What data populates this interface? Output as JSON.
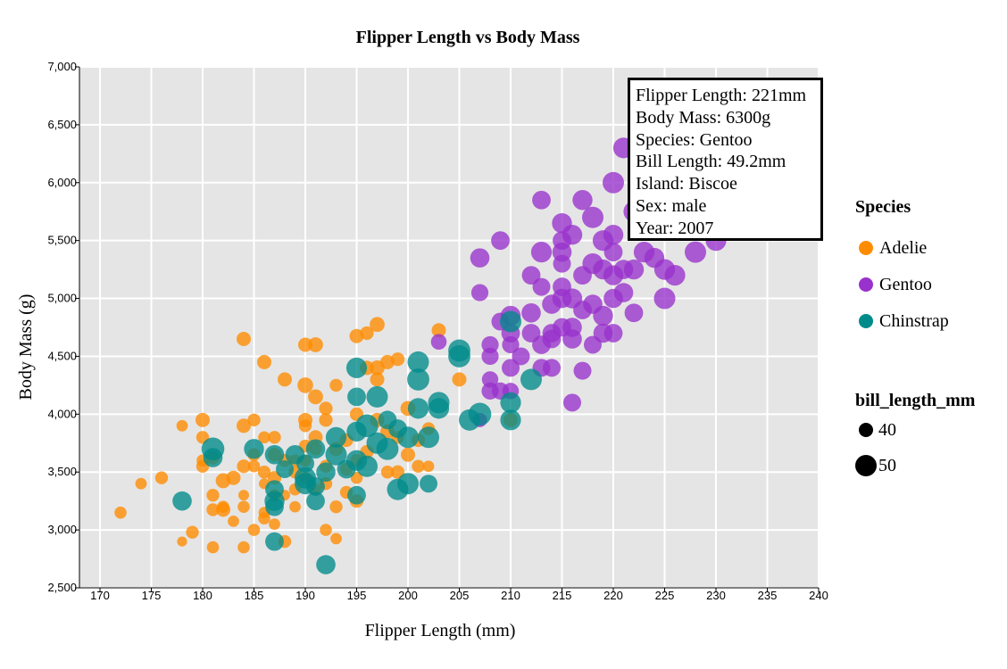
{
  "chart_data": {
    "type": "scatter",
    "title": "Flipper Length vs Body Mass",
    "xlabel": "Flipper Length (mm)",
    "ylabel": "Body Mass (g)",
    "xlim": [
      168,
      240
    ],
    "ylim": [
      2500,
      7000
    ],
    "x_ticks": [
      170,
      175,
      180,
      185,
      190,
      195,
      200,
      205,
      210,
      215,
      220,
      225,
      230,
      235,
      240
    ],
    "y_ticks": [
      2500,
      3000,
      3500,
      4000,
      4500,
      5000,
      5500,
      6000,
      6500,
      7000
    ],
    "x_tick_labels": [
      "170",
      "175",
      "180",
      "185",
      "190",
      "195",
      "200",
      "205",
      "210",
      "215",
      "220",
      "225",
      "230",
      "235",
      "240"
    ],
    "y_tick_labels": [
      "2,500",
      "3,000",
      "3,500",
      "4,000",
      "4,500",
      "5,000",
      "5,500",
      "6,000",
      "6,500",
      "7,000"
    ],
    "grid": true,
    "legend_position": "right",
    "legend": {
      "species_title": "Species",
      "size_title": "bill_length_mm",
      "size_entries": [
        {
          "label": "40",
          "value": 40
        },
        {
          "label": "50",
          "value": 50
        }
      ]
    },
    "series": [
      {
        "name": "Adelie",
        "color": "#ff8c00",
        "points": [
          [
            172,
            3150,
            37
          ],
          [
            174,
            3400,
            36
          ],
          [
            176,
            3450,
            38
          ],
          [
            178,
            2900,
            34
          ],
          [
            178,
            3900,
            36
          ],
          [
            179,
            2980,
            38
          ],
          [
            180,
            3550,
            38
          ],
          [
            180,
            3600,
            37
          ],
          [
            180,
            3950,
            40
          ],
          [
            180,
            3800,
            38
          ],
          [
            181,
            2850,
            37
          ],
          [
            181,
            3300,
            38
          ],
          [
            181,
            3175,
            38
          ],
          [
            181,
            3625,
            39
          ],
          [
            182,
            3175,
            40
          ],
          [
            182,
            3425,
            41
          ],
          [
            182,
            3200,
            37
          ],
          [
            183,
            3075,
            36
          ],
          [
            184,
            2850,
            37
          ],
          [
            184,
            3300,
            35
          ],
          [
            184,
            3550,
            39
          ],
          [
            184,
            3900,
            40
          ],
          [
            184,
            4650,
            40
          ],
          [
            185,
            3650,
            38
          ],
          [
            185,
            3550,
            37
          ],
          [
            185,
            3950,
            38
          ],
          [
            185,
            3000,
            37
          ],
          [
            186,
            3150,
            36
          ],
          [
            186,
            3800,
            37
          ],
          [
            186,
            3500,
            38
          ],
          [
            186,
            3400,
            35
          ],
          [
            186,
            4450,
            40
          ],
          [
            187,
            3300,
            37
          ],
          [
            187,
            3450,
            39
          ],
          [
            187,
            3050,
            36
          ],
          [
            187,
            3800,
            38
          ],
          [
            188,
            3300,
            35
          ],
          [
            188,
            3600,
            38
          ],
          [
            188,
            2900,
            38
          ],
          [
            188,
            4300,
            40
          ],
          [
            189,
            3200,
            36
          ],
          [
            189,
            3500,
            38
          ],
          [
            189,
            3600,
            37
          ],
          [
            190,
            3450,
            37
          ],
          [
            190,
            3725,
            38
          ],
          [
            190,
            3950,
            40
          ],
          [
            190,
            4250,
            42
          ],
          [
            190,
            3600,
            37
          ],
          [
            190,
            3900,
            38
          ],
          [
            190,
            4600,
            40
          ],
          [
            191,
            3350,
            36
          ],
          [
            191,
            3700,
            38
          ],
          [
            191,
            3800,
            40
          ],
          [
            191,
            4150,
            41
          ],
          [
            191,
            4600,
            41
          ],
          [
            192,
            3550,
            38
          ],
          [
            192,
            3950,
            39
          ],
          [
            192,
            4050,
            39
          ],
          [
            193,
            3200,
            38
          ],
          [
            193,
            3700,
            40
          ],
          [
            193,
            4250,
            38
          ],
          [
            193,
            2925,
            36
          ],
          [
            194,
            3325,
            38
          ],
          [
            194,
            3525,
            38
          ],
          [
            194,
            3775,
            39
          ],
          [
            195,
            3250,
            39
          ],
          [
            195,
            3600,
            38
          ],
          [
            195,
            3450,
            37
          ],
          [
            195,
            4000,
            39
          ],
          [
            195,
            4675,
            40
          ],
          [
            196,
            3675,
            39
          ],
          [
            196,
            4400,
            40
          ],
          [
            196,
            4700,
            39
          ],
          [
            197,
            3950,
            40
          ],
          [
            197,
            4300,
            40
          ],
          [
            197,
            4400,
            41
          ],
          [
            197,
            4775,
            41
          ],
          [
            198,
            3500,
            38
          ],
          [
            198,
            3850,
            40
          ],
          [
            198,
            4450,
            40
          ],
          [
            199,
            3500,
            39
          ],
          [
            199,
            3800,
            38
          ],
          [
            199,
            4475,
            39
          ],
          [
            200,
            3650,
            40
          ],
          [
            200,
            4050,
            41
          ],
          [
            201,
            3550,
            38
          ],
          [
            201,
            3775,
            39
          ],
          [
            202,
            3550,
            36
          ],
          [
            202,
            3875,
            38
          ],
          [
            203,
            4725,
            40
          ],
          [
            205,
            4300,
            40
          ],
          [
            210,
            3950,
            40
          ],
          [
            189,
            3350,
            37
          ],
          [
            183,
            3450,
            40
          ],
          [
            187,
            3650,
            39
          ],
          [
            192,
            3000,
            37
          ],
          [
            186,
            3100,
            37
          ],
          [
            184,
            3200,
            37
          ],
          [
            192,
            3400,
            38
          ]
        ]
      },
      {
        "name": "Gentoo",
        "color": "#9932cc",
        "points": [
          [
            203,
            4625,
            42
          ],
          [
            207,
            5050,
            44
          ],
          [
            207,
            3950,
            40
          ],
          [
            207,
            5350,
            47
          ],
          [
            208,
            4300,
            43
          ],
          [
            208,
            4500,
            44
          ],
          [
            208,
            4200,
            44
          ],
          [
            208,
            4600,
            44
          ],
          [
            209,
            4800,
            45
          ],
          [
            209,
            4200,
            44
          ],
          [
            209,
            5500,
            46
          ],
          [
            210,
            4400,
            45
          ],
          [
            210,
            4600,
            44
          ],
          [
            210,
            4850,
            48
          ],
          [
            210,
            4700,
            46
          ],
          [
            210,
            4200,
            43
          ],
          [
            211,
            4500,
            45
          ],
          [
            212,
            4700,
            46
          ],
          [
            212,
            4875,
            47
          ],
          [
            212,
            5200,
            46
          ],
          [
            213,
            4400,
            45
          ],
          [
            213,
            4600,
            46
          ],
          [
            213,
            5100,
            45
          ],
          [
            213,
            5400,
            49
          ],
          [
            213,
            5850,
            46
          ],
          [
            214,
            4650,
            46
          ],
          [
            214,
            4400,
            45
          ],
          [
            214,
            4950,
            47
          ],
          [
            214,
            4700,
            46
          ],
          [
            215,
            4750,
            46
          ],
          [
            215,
            5000,
            47
          ],
          [
            215,
            5100,
            46
          ],
          [
            215,
            5300,
            45
          ],
          [
            215,
            5400,
            47
          ],
          [
            215,
            5650,
            48
          ],
          [
            215,
            5500,
            46
          ],
          [
            216,
            4100,
            45
          ],
          [
            216,
            4750,
            47
          ],
          [
            216,
            4650,
            47
          ],
          [
            216,
            5000,
            48
          ],
          [
            216,
            5550,
            48
          ],
          [
            217,
            4375,
            45
          ],
          [
            217,
            4900,
            46
          ],
          [
            217,
            5850,
            48
          ],
          [
            217,
            5200,
            46
          ],
          [
            218,
            4600,
            45
          ],
          [
            218,
            4950,
            47
          ],
          [
            218,
            5300,
            49
          ],
          [
            218,
            5700,
            50
          ],
          [
            219,
            4700,
            47
          ],
          [
            219,
            4850,
            48
          ],
          [
            219,
            5250,
            48
          ],
          [
            219,
            5500,
            49
          ],
          [
            220,
            4700,
            46
          ],
          [
            220,
            5000,
            47
          ],
          [
            220,
            5200,
            48
          ],
          [
            220,
            5400,
            46
          ],
          [
            220,
            5550,
            48
          ],
          [
            220,
            6000,
            50
          ],
          [
            221,
            5050,
            47
          ],
          [
            221,
            5250,
            47
          ],
          [
            221,
            6300,
            49
          ],
          [
            222,
            4875,
            46
          ],
          [
            222,
            5750,
            49
          ],
          [
            222,
            5250,
            48
          ],
          [
            223,
            5400,
            49
          ],
          [
            224,
            5350,
            48
          ],
          [
            225,
            5000,
            50
          ],
          [
            225,
            5250,
            49
          ],
          [
            226,
            5200,
            49
          ],
          [
            228,
            5400,
            50
          ],
          [
            230,
            5500,
            49
          ]
        ]
      },
      {
        "name": "Chinstrap",
        "color": "#008b8b",
        "points": [
          [
            178,
            3250,
            47
          ],
          [
            181,
            3700,
            52
          ],
          [
            181,
            3625,
            47
          ],
          [
            185,
            3700,
            48
          ],
          [
            187,
            2900,
            46
          ],
          [
            187,
            3200,
            46
          ],
          [
            187,
            3250,
            48
          ],
          [
            187,
            3350,
            46
          ],
          [
            187,
            3650,
            47
          ],
          [
            188,
            3525,
            45
          ],
          [
            189,
            3650,
            47
          ],
          [
            190,
            3450,
            50
          ],
          [
            190,
            3575,
            45
          ],
          [
            190,
            3400,
            50
          ],
          [
            191,
            3250,
            46
          ],
          [
            191,
            3700,
            47
          ],
          [
            191,
            3375,
            46
          ],
          [
            192,
            2700,
            47
          ],
          [
            192,
            3500,
            47
          ],
          [
            193,
            3650,
            50
          ],
          [
            193,
            3800,
            49
          ],
          [
            194,
            3525,
            46
          ],
          [
            195,
            3300,
            46
          ],
          [
            195,
            3600,
            49
          ],
          [
            195,
            3850,
            48
          ],
          [
            195,
            4150,
            46
          ],
          [
            195,
            4400,
            49
          ],
          [
            196,
            3550,
            50
          ],
          [
            196,
            3900,
            52
          ],
          [
            197,
            3750,
            50
          ],
          [
            197,
            4150,
            50
          ],
          [
            198,
            3700,
            51
          ],
          [
            198,
            3950,
            46
          ],
          [
            199,
            3875,
            46
          ],
          [
            199,
            3350,
            50
          ],
          [
            200,
            3400,
            50
          ],
          [
            200,
            3800,
            50
          ],
          [
            201,
            4050,
            49
          ],
          [
            201,
            4300,
            51
          ],
          [
            201,
            4450,
            50
          ],
          [
            202,
            3800,
            50
          ],
          [
            202,
            3400,
            45
          ],
          [
            203,
            4050,
            49
          ],
          [
            203,
            4100,
            50
          ],
          [
            205,
            4500,
            51
          ],
          [
            205,
            4550,
            51
          ],
          [
            206,
            3950,
            50
          ],
          [
            207,
            4000,
            52
          ],
          [
            210,
            3950,
            49
          ],
          [
            210,
            4100,
            49
          ],
          [
            210,
            4800,
            50
          ],
          [
            212,
            4300,
            50
          ]
        ]
      }
    ]
  },
  "tooltip": {
    "line1": "Flipper Length: 221mm",
    "line2": "Body Mass: 6300g",
    "line3": "Species: Gentoo",
    "line4": "Bill Length: 49.2mm",
    "line5": "Island: Biscoe",
    "line6": "Sex: male",
    "line7": "Year: 2007"
  }
}
